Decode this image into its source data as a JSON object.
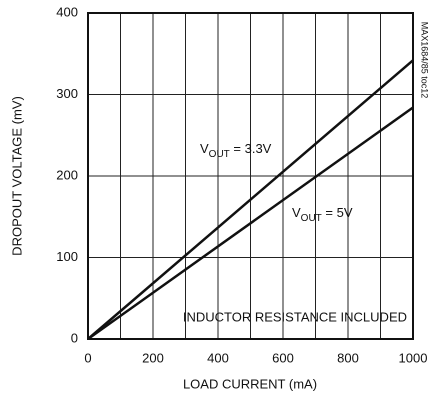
{
  "chart_data": {
    "type": "line",
    "x_label": "LOAD CURRENT (mA)",
    "y_label": "DROPOUT VOLTAGE (mV)",
    "annotations": [
      "INDUCTOR RESISTANCE INCLUDED",
      "MAX1684/85 toc12"
    ],
    "x": [
      0,
      1000
    ],
    "series": [
      {
        "name": "VOUT = 3.3V",
        "color": "#111111",
        "values": [
          0,
          342
        ]
      },
      {
        "name": "VOUT = 5V",
        "color": "#111111",
        "values": [
          0,
          284
        ]
      }
    ],
    "xlim": [
      0,
      1000
    ],
    "ylim": [
      0,
      400
    ],
    "xticks": [
      0,
      200,
      400,
      600,
      800,
      1000
    ],
    "xgrid": [
      0,
      100,
      200,
      300,
      400,
      500,
      600,
      700,
      800,
      900,
      1000
    ],
    "yticks": [
      0,
      100,
      200,
      300,
      400
    ],
    "grid": true
  }
}
